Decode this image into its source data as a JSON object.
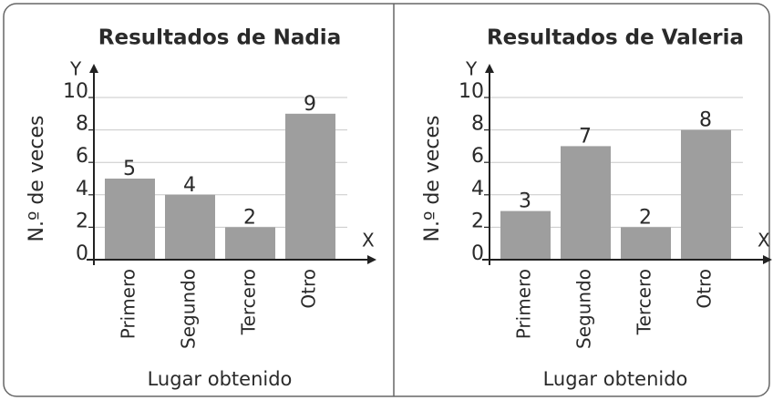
{
  "chart_data": [
    {
      "type": "bar",
      "title": "Resultados de Nadia",
      "x_label": "Lugar obtenido",
      "y_label": "N.º de veces",
      "x_axis_name": "X",
      "y_axis_name": "Y",
      "categories": [
        "Primero",
        "Segundo",
        "Tercero",
        "Otro"
      ],
      "values": [
        5,
        4,
        2,
        9
      ],
      "color": "#9e9e9e",
      "ylim": [
        0,
        10
      ],
      "yticks": [
        0,
        2,
        4,
        6,
        8,
        10
      ],
      "grid": true
    },
    {
      "type": "bar",
      "title": "Resultados de Valeria",
      "x_label": "Lugar obtenido",
      "y_label": "N.º de veces",
      "x_axis_name": "X",
      "y_axis_name": "Y",
      "categories": [
        "Primero",
        "Segundo",
        "Tercero",
        "Otro"
      ],
      "values": [
        3,
        7,
        2,
        8
      ],
      "color": "#9e9e9e",
      "ylim": [
        0,
        10
      ],
      "yticks": [
        0,
        2,
        4,
        6,
        8,
        10
      ],
      "grid": true
    }
  ]
}
